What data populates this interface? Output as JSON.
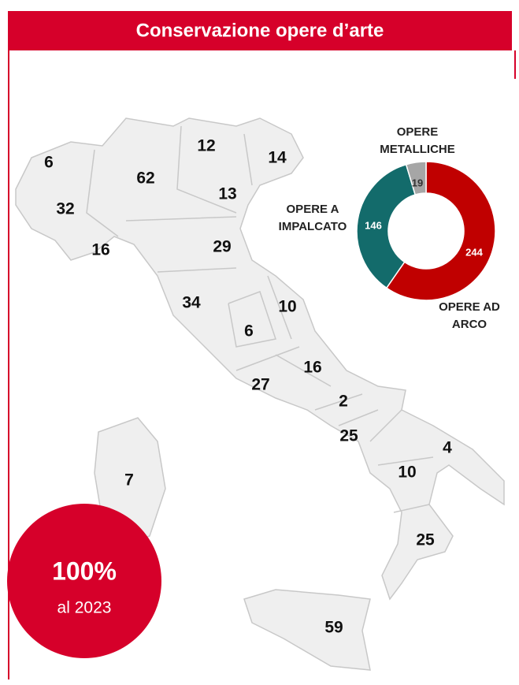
{
  "header": {
    "title": "Conservazione opere d’arte"
  },
  "map": {
    "values": [
      6,
      62,
      12,
      14,
      32,
      13,
      16,
      29,
      34,
      10,
      6,
      16,
      27,
      2,
      25,
      4,
      10,
      7,
      25,
      59
    ]
  },
  "chart_data": {
    "type": "donut",
    "categories": [
      [
        "OPERE AD",
        "ARCO"
      ],
      [
        "OPERE A",
        "IMPALCATO"
      ],
      [
        "OPERE",
        "METALLICHE"
      ]
    ],
    "values": [
      244,
      146,
      19
    ],
    "colors": [
      "#c00000",
      "#136b6b",
      "#a6a6a6"
    ]
  },
  "badge": {
    "value": "100%",
    "label": "al 2023"
  }
}
